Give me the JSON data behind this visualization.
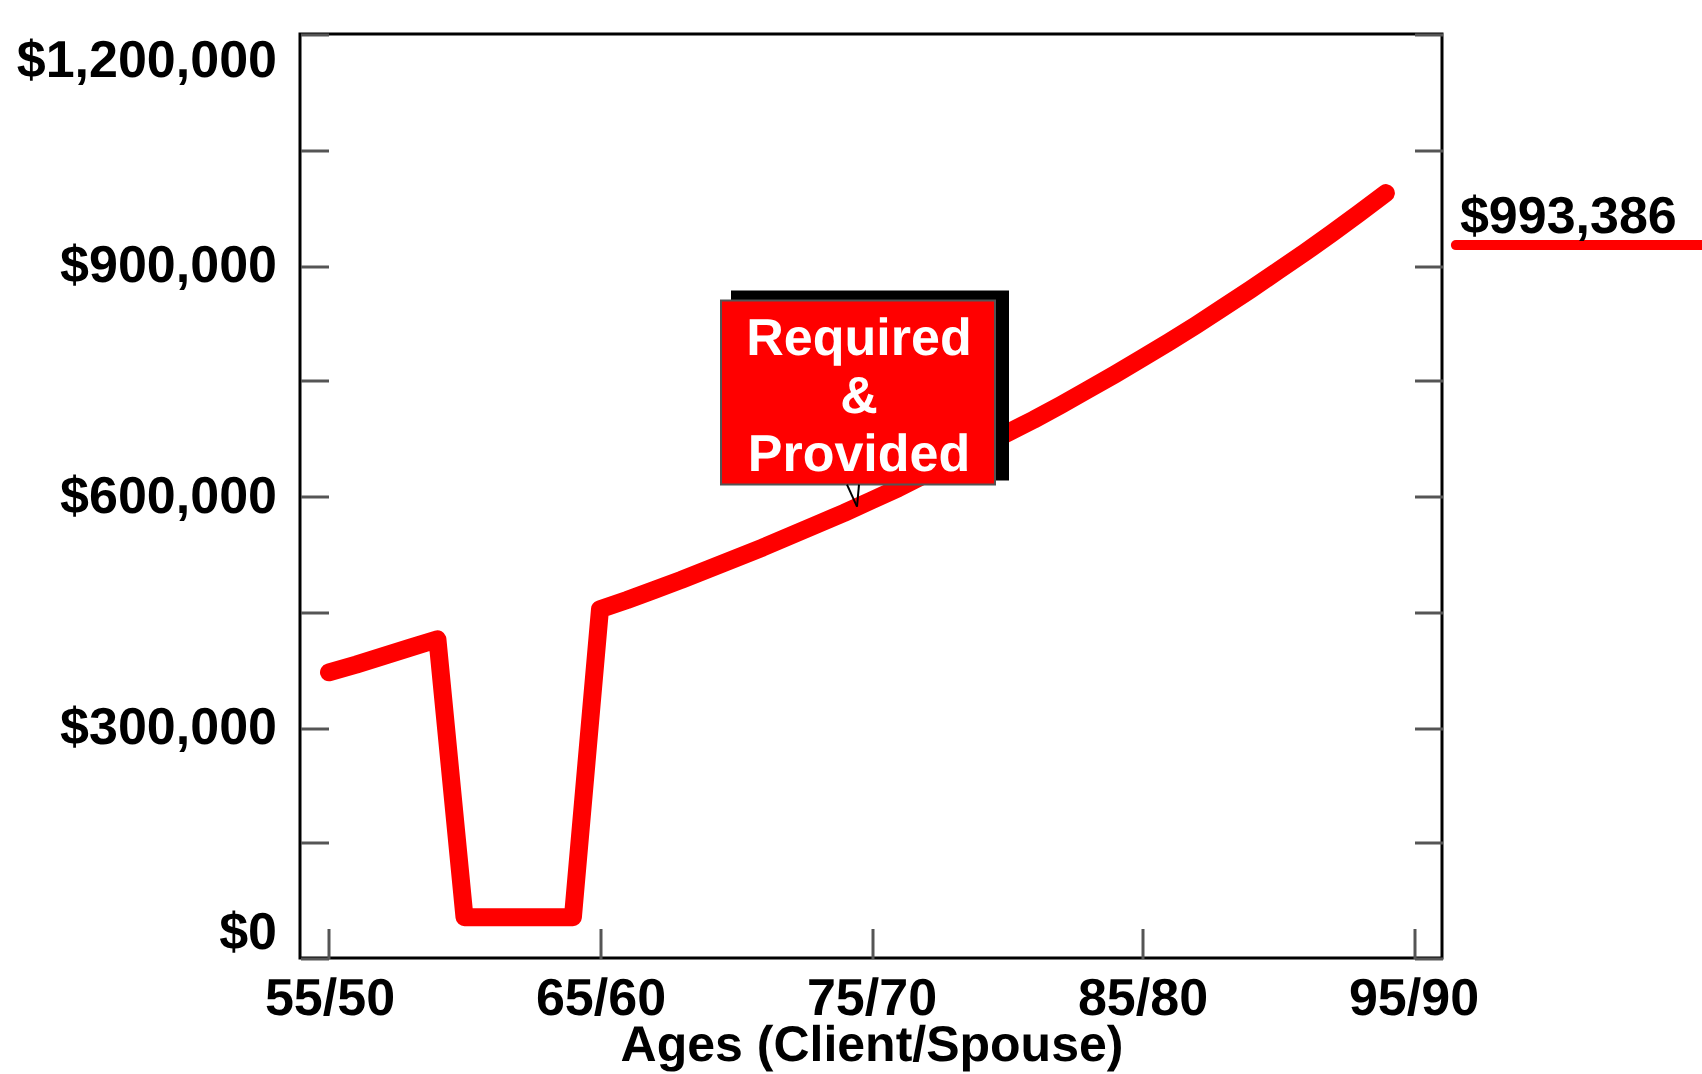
{
  "chart_data": {
    "type": "line",
    "xlabel": "Ages (Client/Spouse)",
    "categories": [
      "55/50",
      null,
      null,
      null,
      null,
      null,
      null,
      null,
      null,
      null,
      "65/60",
      null,
      null,
      null,
      null,
      null,
      null,
      null,
      null,
      null,
      "75/70",
      null,
      null,
      null,
      null,
      null,
      null,
      null,
      null,
      null,
      "85/80",
      null,
      null,
      null,
      null,
      null,
      null,
      null,
      null,
      null,
      "95/90"
    ],
    "series": [
      {
        "color": "#ff0000",
        "values": [
          371000,
          381000,
          392000,
          403000,
          414000,
          53000,
          53000,
          53000,
          53000,
          53000,
          453000,
          465000,
          478000,
          491000,
          505000,
          519000,
          533000,
          548000,
          563000,
          578000,
          594000,
          610000,
          null,
          null,
          null,
          null,
          699000,
          718000,
          738000,
          758000,
          779000,
          800000,
          822000,
          845000,
          868000,
          892000,
          916000,
          941000,
          967000,
          993386,
          null
        ],
        "value_labels": [
          null,
          null,
          null,
          null,
          null,
          null,
          null,
          null,
          null,
          null,
          null,
          null,
          null,
          null,
          null,
          null,
          null,
          null,
          null,
          null,
          null,
          null,
          null,
          null,
          null,
          null,
          null,
          null,
          null,
          null,
          null,
          null,
          null,
          null,
          null,
          null,
          null,
          null,
          null,
          "$993,386",
          null
        ]
      }
    ],
    "ylim": [
      0,
      1200000
    ],
    "yticks": [
      {
        "value": 0,
        "label": "$0"
      },
      {
        "value": 150000,
        "label": null
      },
      {
        "value": 300000,
        "label": "$300,000"
      },
      {
        "value": 450000,
        "label": null
      },
      {
        "value": 600000,
        "label": "$600,000"
      },
      {
        "value": 750000,
        "label": null
      },
      {
        "value": 900000,
        "label": "$900,000"
      },
      {
        "value": 1050000,
        "label": null
      },
      {
        "value": 1200000,
        "label": "$1,200,000"
      }
    ],
    "annotations": [
      {
        "text": "Required\n&\nProvided",
        "x": "75/70",
        "y": 594000
      }
    ]
  }
}
